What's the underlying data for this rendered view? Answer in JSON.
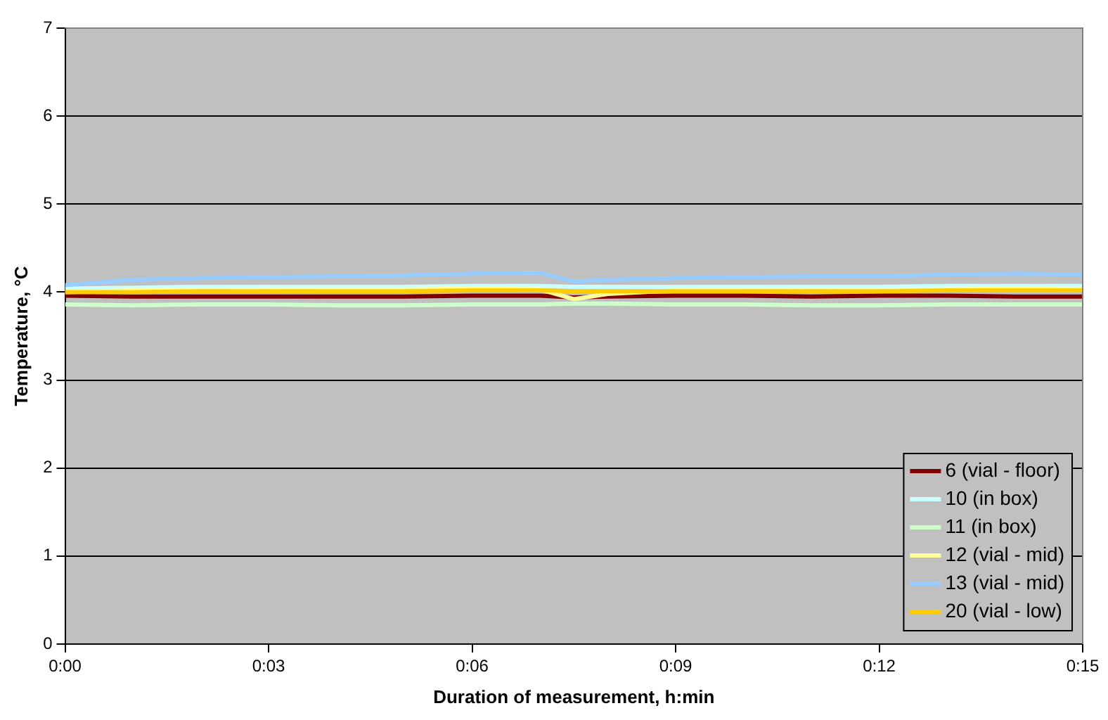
{
  "chart_data": {
    "type": "line",
    "xlabel": "Duration of measurement, h:min",
    "ylabel": "Temperature, °C",
    "x": [
      0,
      0.0167,
      0.0333,
      0.05,
      0.0667,
      0.0833,
      0.1,
      0.1167,
      0.125,
      0.1333,
      0.15,
      0.1667,
      0.1833,
      0.2,
      0.2167,
      0.2333,
      0.25
    ],
    "series": [
      {
        "name": "6 (vial - floor)",
        "color": "#800000",
        "values": [
          3.96,
          3.95,
          3.95,
          3.95,
          3.95,
          3.95,
          3.96,
          3.96,
          3.94,
          3.95,
          3.96,
          3.96,
          3.95,
          3.96,
          3.96,
          3.95,
          3.95
        ]
      },
      {
        "name": "10 (in box)",
        "color": "#ccffff",
        "values": [
          4.04,
          4.05,
          4.06,
          4.06,
          4.06,
          4.06,
          4.07,
          4.07,
          4.06,
          4.06,
          4.06,
          4.06,
          4.06,
          4.06,
          4.07,
          4.07,
          4.07
        ]
      },
      {
        "name": "11 (in box)",
        "color": "#ccffcc",
        "values": [
          3.86,
          3.85,
          3.86,
          3.86,
          3.85,
          3.85,
          3.86,
          3.86,
          3.87,
          3.87,
          3.86,
          3.86,
          3.85,
          3.85,
          3.86,
          3.86,
          3.86
        ]
      },
      {
        "name": "12 (vial - mid)",
        "color": "#ffff99",
        "values": [
          4.0,
          4.02,
          4.02,
          4.03,
          4.03,
          4.03,
          4.04,
          4.03,
          3.92,
          3.98,
          4.02,
          4.02,
          4.02,
          4.02,
          4.03,
          4.04,
          4.03
        ]
      },
      {
        "name": "13 (vial - mid)",
        "color": "#99ccff",
        "values": [
          4.08,
          4.14,
          4.16,
          4.17,
          4.18,
          4.19,
          4.21,
          4.22,
          4.12,
          4.14,
          4.16,
          4.17,
          4.18,
          4.18,
          4.2,
          4.21,
          4.2
        ]
      },
      {
        "name": "20 (vial - low)",
        "color": "#ffcc00",
        "values": [
          4.0,
          4.0,
          4.01,
          4.01,
          4.01,
          4.01,
          4.02,
          4.02,
          4.01,
          4.01,
          4.01,
          4.01,
          4.01,
          4.01,
          4.02,
          4.02,
          4.02
        ]
      }
    ],
    "xlim": [
      0,
      0.25
    ],
    "xticks": [
      {
        "value": 0,
        "label": "0:00"
      },
      {
        "value": 0.05,
        "label": "0:03"
      },
      {
        "value": 0.1,
        "label": "0:06"
      },
      {
        "value": 0.15,
        "label": "0:09"
      },
      {
        "value": 0.2,
        "label": "0:12"
      },
      {
        "value": 0.25,
        "label": "0:15"
      }
    ],
    "ylim": [
      0,
      7
    ],
    "yticks": [
      0,
      1,
      2,
      3,
      4,
      5,
      6,
      7
    ],
    "grid": "y",
    "legend": "bottom right",
    "marker": "none",
    "line_style": "solid"
  }
}
